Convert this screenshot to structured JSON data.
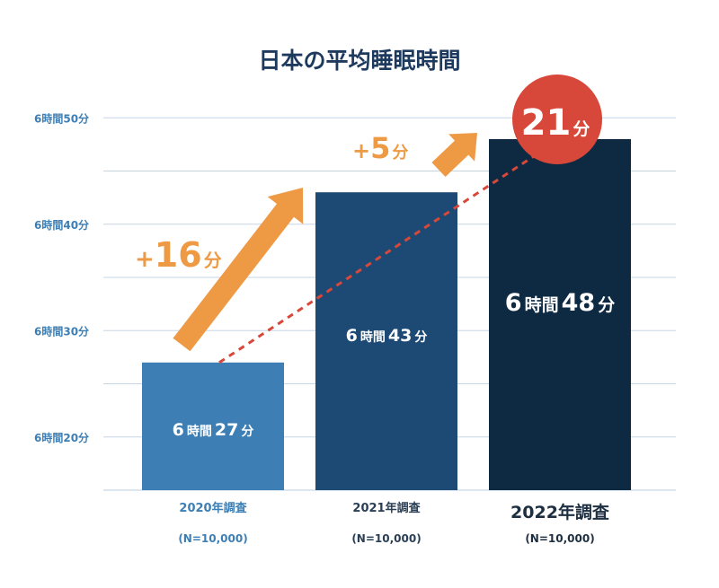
{
  "chart_data": {
    "type": "bar",
    "title": "日本の平均睡眠時間",
    "unit": "分",
    "ylim": [
      375,
      412
    ],
    "y_ticks": [
      {
        "value": 380,
        "label": "6時間20分"
      },
      {
        "value": 390,
        "label": "6時間30分"
      },
      {
        "value": 400,
        "label": "6時間40分"
      },
      {
        "value": 410,
        "label": "6時間50分"
      }
    ],
    "grid": true,
    "categories": [
      "2020年調査",
      "2021年調査",
      "2022年調査"
    ],
    "sample_sizes": [
      "(N=10,000)",
      "(N=10,000)",
      "(N=10,000)"
    ],
    "values": [
      387,
      403,
      408
    ],
    "value_labels": [
      {
        "h": "6",
        "h_unit": "時間",
        "m": "27",
        "m_unit": "分"
      },
      {
        "h": "6",
        "h_unit": "時間",
        "m": "43",
        "m_unit": "分"
      },
      {
        "h": "6",
        "h_unit": "時間",
        "m": "48",
        "m_unit": "分"
      }
    ],
    "increases": [
      {
        "sign": "+",
        "value": "16",
        "unit": "分"
      },
      {
        "sign": "+",
        "value": "5",
        "unit": "分"
      }
    ],
    "total_increase": {
      "value": "21",
      "unit": "分"
    },
    "colors": {
      "bars": [
        "#3d7fb5",
        "#1d4a75",
        "#0d2a42"
      ],
      "arrow": "#ee9a45",
      "trend_line": "#d8483a",
      "badge": "#d8483a",
      "grid": "#c5d6e6",
      "axis_text": "#3d7fb5",
      "category_text": [
        "#3d7fb5",
        "#2a3f55",
        "#1d2f40"
      ]
    }
  }
}
